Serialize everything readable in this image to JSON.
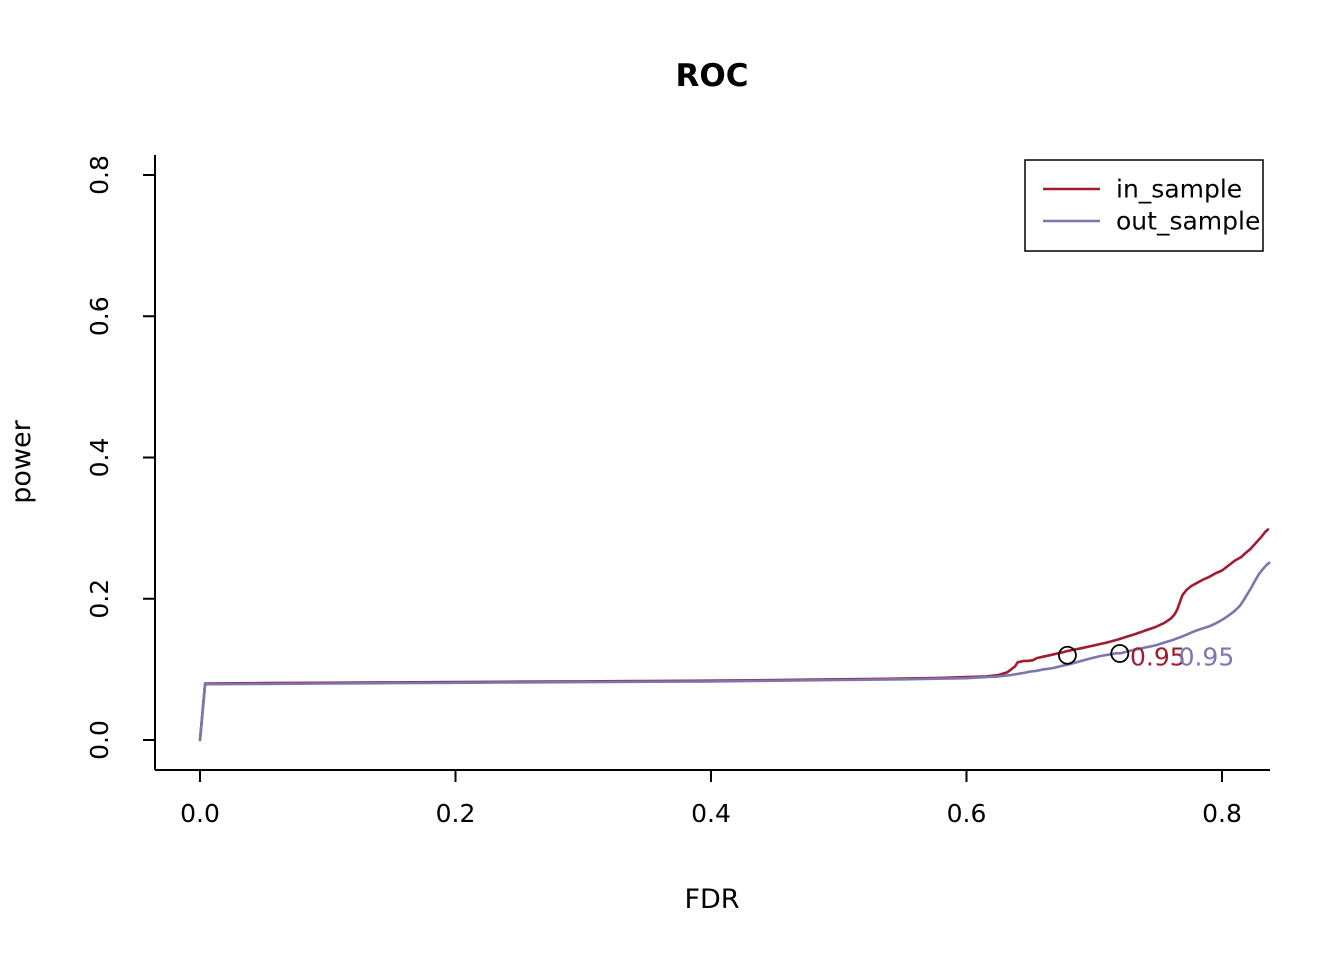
{
  "figure": {
    "background": "#ffffff",
    "axis_color": "#000000"
  },
  "chart_data": {
    "type": "line",
    "title": "ROC",
    "xlabel": "FDR",
    "ylabel": "power",
    "xlim": [
      -0.035,
      0.8375
    ],
    "ylim": [
      -0.042,
      0.828
    ],
    "xticks": [
      0,
      0.2,
      0.4,
      0.6,
      0.8
    ],
    "xtick_labels": [
      "0.0",
      "0.2",
      "0.4",
      "0.6",
      "0.8"
    ],
    "yticks": [
      0,
      0.2,
      0.4,
      0.6,
      0.8
    ],
    "ytick_labels": [
      "0.0",
      "0.2",
      "0.4",
      "0.6",
      "0.8"
    ],
    "grid": false,
    "legend_position": "top-right",
    "series": [
      {
        "name": "in_sample",
        "color": "#a11c33",
        "points": [
          [
            0.0,
            0.0
          ],
          [
            0.004,
            0.08
          ],
          [
            0.05,
            0.0805
          ],
          [
            0.1,
            0.081
          ],
          [
            0.15,
            0.0815
          ],
          [
            0.2,
            0.082
          ],
          [
            0.25,
            0.0825
          ],
          [
            0.3,
            0.083
          ],
          [
            0.35,
            0.0835
          ],
          [
            0.4,
            0.084
          ],
          [
            0.45,
            0.085
          ],
          [
            0.5,
            0.086
          ],
          [
            0.55,
            0.087
          ],
          [
            0.58,
            0.088
          ],
          [
            0.6,
            0.089
          ],
          [
            0.615,
            0.09
          ],
          [
            0.625,
            0.092
          ],
          [
            0.632,
            0.096
          ],
          [
            0.638,
            0.104
          ],
          [
            0.64,
            0.11
          ],
          [
            0.645,
            0.112
          ],
          [
            0.648,
            0.112
          ],
          [
            0.652,
            0.113
          ],
          [
            0.655,
            0.116
          ],
          [
            0.66,
            0.118
          ],
          [
            0.665,
            0.12
          ],
          [
            0.67,
            0.122
          ],
          [
            0.675,
            0.124
          ],
          [
            0.679,
            0.126
          ],
          [
            0.69,
            0.13
          ],
          [
            0.7,
            0.134
          ],
          [
            0.71,
            0.138
          ],
          [
            0.718,
            0.142
          ],
          [
            0.725,
            0.146
          ],
          [
            0.732,
            0.15
          ],
          [
            0.74,
            0.155
          ],
          [
            0.748,
            0.16
          ],
          [
            0.755,
            0.166
          ],
          [
            0.76,
            0.172
          ],
          [
            0.763,
            0.178
          ],
          [
            0.765,
            0.185
          ],
          [
            0.767,
            0.195
          ],
          [
            0.769,
            0.205
          ],
          [
            0.772,
            0.212
          ],
          [
            0.776,
            0.218
          ],
          [
            0.78,
            0.222
          ],
          [
            0.785,
            0.227
          ],
          [
            0.79,
            0.231
          ],
          [
            0.795,
            0.236
          ],
          [
            0.8,
            0.24
          ],
          [
            0.805,
            0.247
          ],
          [
            0.81,
            0.254
          ],
          [
            0.815,
            0.259
          ],
          [
            0.818,
            0.264
          ],
          [
            0.822,
            0.27
          ],
          [
            0.825,
            0.276
          ],
          [
            0.828,
            0.282
          ],
          [
            0.831,
            0.288
          ],
          [
            0.834,
            0.295
          ],
          [
            0.836,
            0.298
          ]
        ]
      },
      {
        "name": "out_sample",
        "color": "#7b76ad",
        "points": [
          [
            0.0,
            0.0
          ],
          [
            0.004,
            0.079
          ],
          [
            0.05,
            0.0795
          ],
          [
            0.1,
            0.08
          ],
          [
            0.15,
            0.0805
          ],
          [
            0.2,
            0.081
          ],
          [
            0.25,
            0.0815
          ],
          [
            0.3,
            0.082
          ],
          [
            0.35,
            0.0825
          ],
          [
            0.4,
            0.083
          ],
          [
            0.45,
            0.084
          ],
          [
            0.5,
            0.085
          ],
          [
            0.55,
            0.086
          ],
          [
            0.6,
            0.0875
          ],
          [
            0.615,
            0.089
          ],
          [
            0.625,
            0.09
          ],
          [
            0.635,
            0.092
          ],
          [
            0.645,
            0.095
          ],
          [
            0.65,
            0.097
          ],
          [
            0.655,
            0.098
          ],
          [
            0.66,
            0.1
          ],
          [
            0.668,
            0.102
          ],
          [
            0.675,
            0.105
          ],
          [
            0.682,
            0.108
          ],
          [
            0.69,
            0.112
          ],
          [
            0.698,
            0.116
          ],
          [
            0.705,
            0.119
          ],
          [
            0.712,
            0.121
          ],
          [
            0.718,
            0.123
          ],
          [
            0.72,
            0.1225
          ],
          [
            0.725,
            0.125
          ],
          [
            0.732,
            0.128
          ],
          [
            0.74,
            0.131
          ],
          [
            0.748,
            0.134
          ],
          [
            0.755,
            0.138
          ],
          [
            0.762,
            0.142
          ],
          [
            0.768,
            0.146
          ],
          [
            0.772,
            0.149
          ],
          [
            0.776,
            0.152
          ],
          [
            0.78,
            0.155
          ],
          [
            0.785,
            0.158
          ],
          [
            0.79,
            0.161
          ],
          [
            0.795,
            0.165
          ],
          [
            0.8,
            0.17
          ],
          [
            0.805,
            0.176
          ],
          [
            0.81,
            0.183
          ],
          [
            0.814,
            0.19
          ],
          [
            0.817,
            0.198
          ],
          [
            0.82,
            0.207
          ],
          [
            0.823,
            0.216
          ],
          [
            0.826,
            0.226
          ],
          [
            0.829,
            0.235
          ],
          [
            0.832,
            0.242
          ],
          [
            0.835,
            0.248
          ],
          [
            0.837,
            0.251
          ]
        ]
      }
    ],
    "markers": [
      {
        "x": 0.679,
        "y": 0.12,
        "shape": "open-circle",
        "color": "#000000"
      },
      {
        "x": 0.72,
        "y": 0.1225,
        "shape": "open-circle",
        "color": "#000000"
      }
    ],
    "annotations": [
      {
        "text": "0.95",
        "x": 0.728,
        "y": 0.1175,
        "color": "#a11c33"
      },
      {
        "text": "0.95",
        "x": 0.766,
        "y": 0.1175,
        "color": "#7b76ad"
      }
    ]
  }
}
